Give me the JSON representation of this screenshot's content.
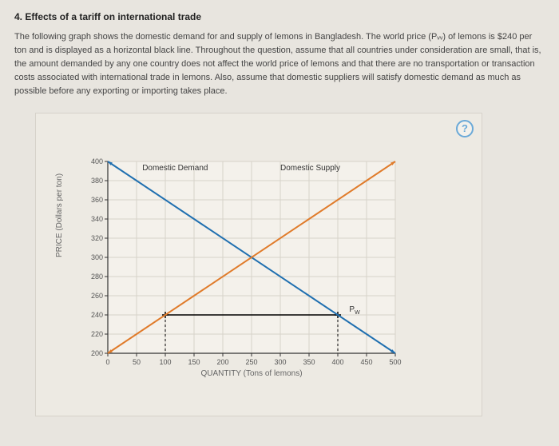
{
  "heading": "4. Effects of a tariff on international trade",
  "body": "The following graph shows the domestic demand for and supply of lemons in Bangladesh. The world price (Pᵥᵥ) of lemons is $240 per ton and is displayed as a horizontal black line. Throughout the question, assume that all countries under consideration are small, that is, the amount demanded by any one country does not affect the world price of lemons and that there are no transportation or transaction costs associated with international trade in lemons. Also, assume that domestic suppliers will satisfy domestic demand as much as possible before any exporting or importing takes place.",
  "help_label": "?",
  "chart": {
    "type": "line",
    "x_min": 0,
    "x_max": 500,
    "y_min": 200,
    "y_max": 400,
    "x_ticks": [
      0,
      50,
      100,
      150,
      200,
      250,
      300,
      350,
      400,
      450,
      500
    ],
    "y_ticks": [
      200,
      220,
      240,
      260,
      280,
      300,
      320,
      340,
      360,
      380,
      400
    ],
    "x_label": "QUANTITY (Tons of lemons)",
    "y_label": "PRICE (Dollars per ton)",
    "grid_color": "#d6d2ca",
    "axis_color": "#333333",
    "background": "#f4f1eb",
    "lines": {
      "demand": {
        "label": "Domestic Demand",
        "color": "#1f6fb0",
        "x1": 0,
        "y1": 400,
        "x2": 500,
        "y2": 200,
        "label_x": 60,
        "label_y": 398
      },
      "supply": {
        "label": "Domestic Supply",
        "color": "#e07b2a",
        "x1": 0,
        "y1": 200,
        "x2": 500,
        "y2": 400,
        "label_x": 300,
        "label_y": 398
      },
      "world": {
        "label": "P",
        "sub": "W",
        "color": "#000000",
        "x1": 100,
        "y1": 240,
        "x2": 400,
        "y2": 240,
        "label_x": 420,
        "label_y": 250
      }
    }
  }
}
